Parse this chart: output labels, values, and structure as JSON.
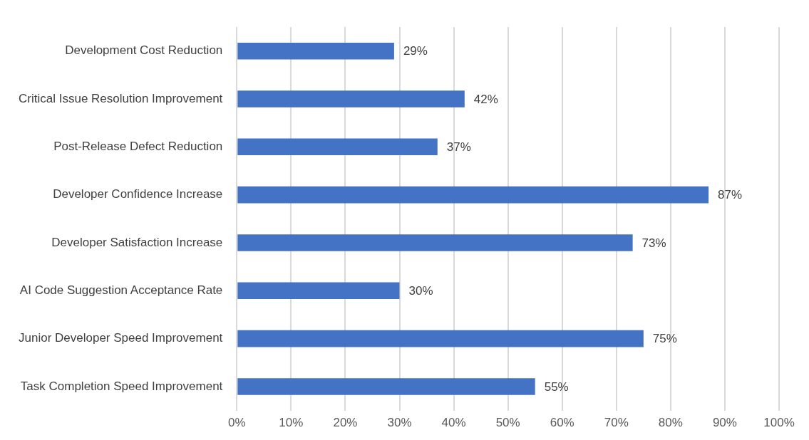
{
  "chart_data": {
    "type": "bar",
    "orientation": "horizontal",
    "categories": [
      "Development Cost Reduction",
      "Critical Issue Resolution Improvement",
      "Post-Release Defect Reduction",
      "Developer Confidence Increase",
      "Developer Satisfaction Increase",
      "AI Code Suggestion Acceptance Rate",
      "Junior Developer Speed Improvement",
      "Task Completion Speed Improvement"
    ],
    "values": [
      29,
      42,
      37,
      87,
      73,
      30,
      75,
      55
    ],
    "value_labels": [
      "29%",
      "42%",
      "37%",
      "87%",
      "73%",
      "30%",
      "75%",
      "55%"
    ],
    "color": "#4472c4",
    "xlim": [
      0,
      100
    ],
    "xticks": [
      {
        "value": 0,
        "label": "0%"
      },
      {
        "value": 10,
        "label": "10%"
      },
      {
        "value": 20,
        "label": "20%"
      },
      {
        "value": 30,
        "label": "30%"
      },
      {
        "value": 40,
        "label": "40%"
      },
      {
        "value": 50,
        "label": "50%"
      },
      {
        "value": 60,
        "label": "60%"
      },
      {
        "value": 70,
        "label": "70%"
      },
      {
        "value": 80,
        "label": "80%"
      },
      {
        "value": 90,
        "label": "90%"
      },
      {
        "value": 100,
        "label": "100%"
      }
    ],
    "grid": "x",
    "legend": false
  }
}
